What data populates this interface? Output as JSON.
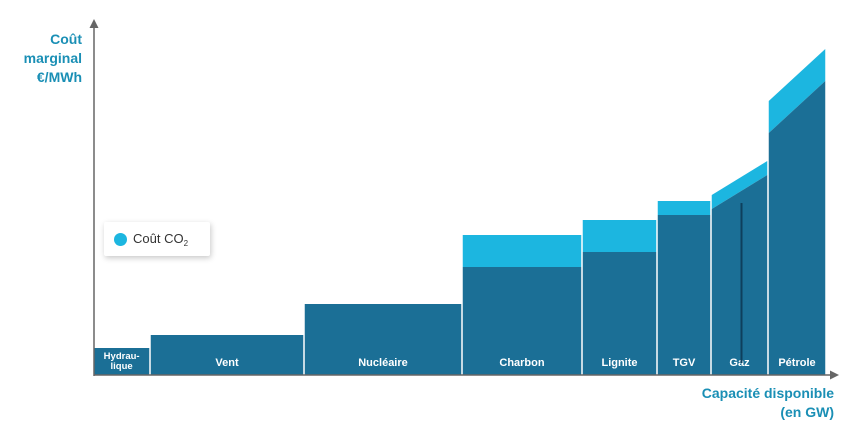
{
  "chart_data": {
    "type": "bar",
    "ylabel": [
      "Coût",
      "marginal",
      "€/MWh"
    ],
    "xlabel": [
      "Capacité disponible",
      "(en GW)"
    ],
    "legend": {
      "label": "Coût CO",
      "subscript": "2",
      "color": "#1cb6e0"
    },
    "colors": {
      "base": "#1b6f96",
      "co2": "#1cb6e0",
      "axis": "#666666",
      "label_text": "#ffffff"
    },
    "x_range": [
      0,
      735
    ],
    "y_range": [
      0,
      330
    ],
    "series": [
      {
        "name": "Coût",
        "role": "base"
      },
      {
        "name": "Coût CO2",
        "role": "co2"
      }
    ],
    "blocks": [
      {
        "label": [
          "Hydrau-",
          "lique"
        ],
        "x_start": 0,
        "x_end": 56,
        "base": 27,
        "co2": 0
      },
      {
        "label": [
          "Vent"
        ],
        "x_start": 56,
        "x_end": 210,
        "base": 40,
        "co2": 0
      },
      {
        "label": [
          "Nucléaire"
        ],
        "x_start": 210,
        "x_end": 368,
        "base": 71,
        "co2": 0
      },
      {
        "label": [
          "Charbon"
        ],
        "x_start": 368,
        "x_end": 488,
        "base": 108,
        "co2": 32
      },
      {
        "label": [
          "Lignite"
        ],
        "x_start": 488,
        "x_end": 563,
        "base": 123,
        "co2": 32
      },
      {
        "label": [
          "TGV"
        ],
        "x_start": 563,
        "x_end": 617,
        "base": 160,
        "co2": 14
      },
      {
        "label": [
          "Gaz"
        ],
        "x_start": 617,
        "x_end": 674,
        "base_start": 166,
        "base_end": 200,
        "co2": 14
      },
      {
        "label": [
          "Pétrole"
        ],
        "x_start": 674,
        "x_end": 732,
        "base_start": 242,
        "base_end": 294,
        "co2": 32
      }
    ]
  }
}
